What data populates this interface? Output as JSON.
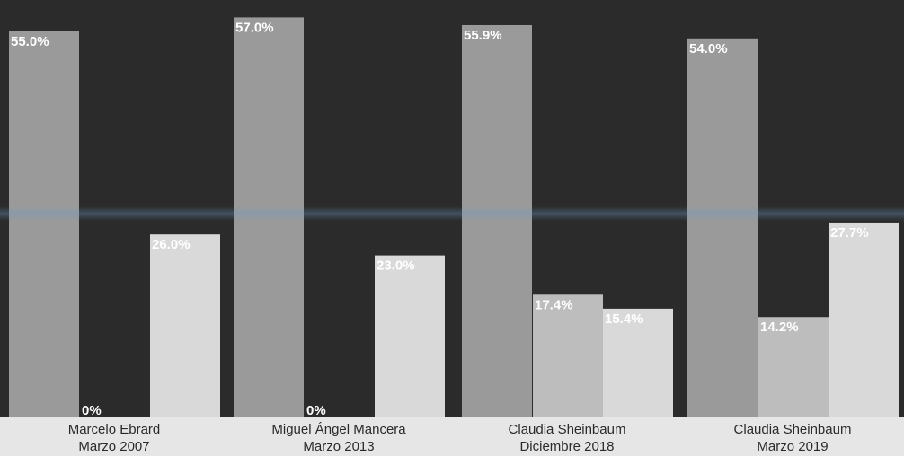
{
  "chart_data": {
    "type": "bar",
    "title": "",
    "xlabel": "",
    "ylabel": "",
    "ylim": [
      0,
      60
    ],
    "grid": false,
    "legend": "none",
    "groups": [
      {
        "label_line1": "Marcelo Ebrard",
        "label_line2": "Marzo 2007",
        "values": [
          55.0,
          0,
          26.0
        ],
        "labels": [
          "55.0%",
          "0%",
          "26.0%"
        ]
      },
      {
        "label_line1": "Miguel Ángel Mancera",
        "label_line2": "Marzo 2013",
        "values": [
          57.0,
          0,
          23.0
        ],
        "labels": [
          "57.0%",
          "0%",
          "23.0%"
        ]
      },
      {
        "label_line1": "Claudia Sheinbaum",
        "label_line2": "Diciembre 2018",
        "values": [
          55.9,
          17.4,
          15.4
        ],
        "labels": [
          "55.9%",
          "17.4%",
          "15.4%"
        ]
      },
      {
        "label_line1": "Claudia Sheinbaum",
        "label_line2": "Marzo 2019",
        "values": [
          54.0,
          14.2,
          27.7
        ],
        "labels": [
          "54.0%",
          "14.2%",
          "27.7%"
        ]
      }
    ],
    "colors": {
      "background": "#2b2b2b",
      "bar_1": "#9a9a9a",
      "bar_2": "#bdbdbd",
      "bar_3": "#d9d9d9",
      "label_text": "#ffffff",
      "category_band": "#e6e6e6",
      "category_text": "#2a2a2a"
    }
  }
}
